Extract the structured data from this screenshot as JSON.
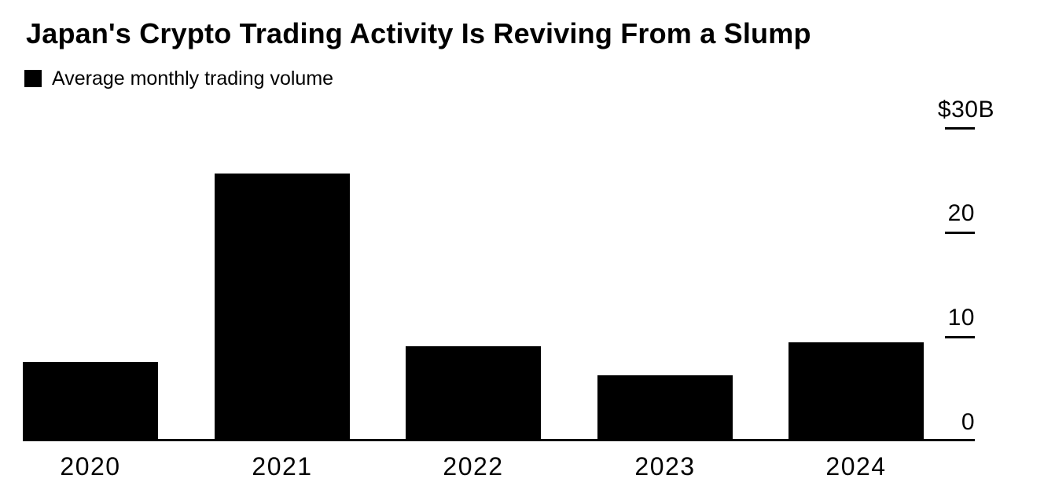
{
  "header": {
    "title": "Japan's Crypto Trading Activity Is Reviving From a Slump",
    "legend_label": "Average monthly trading volume"
  },
  "colors": {
    "bar": "#000000",
    "text": "#000000",
    "background": "#ffffff"
  },
  "chart_data": {
    "type": "bar",
    "title": "Japan's Crypto Trading Activity Is Reviving From a Slump",
    "legend": [
      "Average monthly trading volume"
    ],
    "legend_position": "top-left",
    "categories": [
      "2020",
      "2021",
      "2022",
      "2023",
      "2024"
    ],
    "values": [
      7.6,
      25.7,
      9.1,
      6.3,
      9.5
    ],
    "xlabel": "",
    "ylabel": "",
    "ylim": [
      0,
      30
    ],
    "yticks": [
      {
        "value": 30,
        "label": "$30B",
        "dash": true
      },
      {
        "value": 20,
        "label": "20",
        "dash": true
      },
      {
        "value": 10,
        "label": "10",
        "dash": true
      },
      {
        "value": 0,
        "label": "0",
        "dash": false
      }
    ],
    "y_axis_side": "right",
    "grid": false,
    "bar_color": "#000000"
  }
}
